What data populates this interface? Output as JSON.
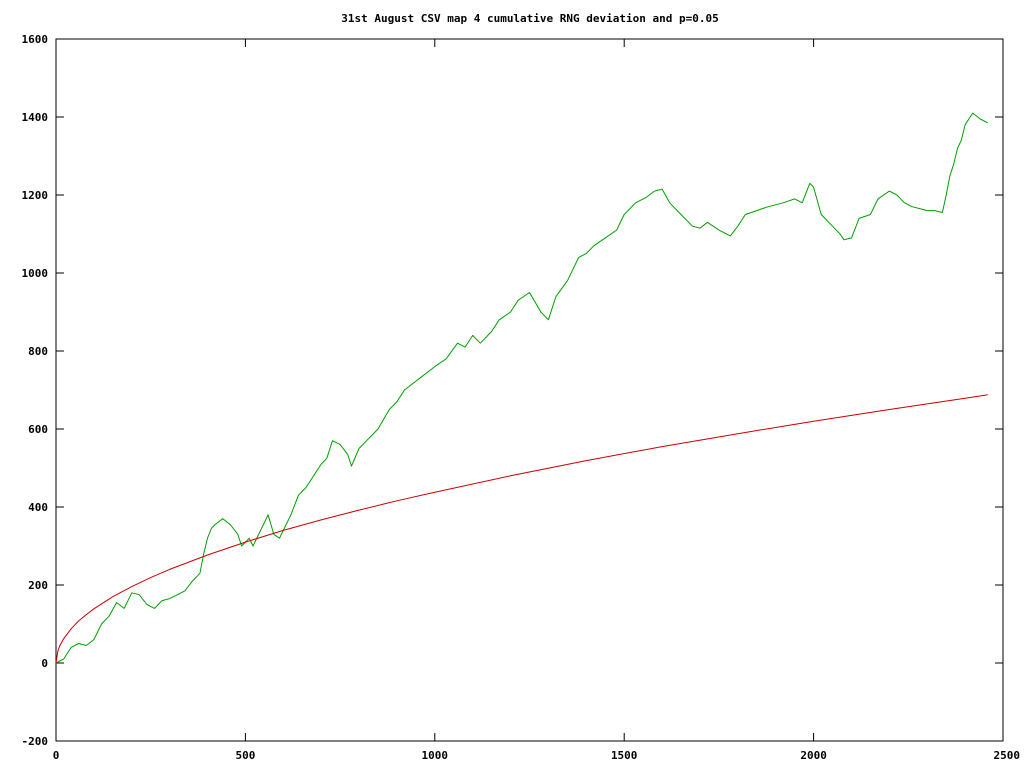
{
  "chart_data": {
    "type": "line",
    "title": "31st August CSV map 4 cumulative RNG deviation and p=0.05",
    "xlabel": "",
    "ylabel": "",
    "xlim": [
      0,
      2500
    ],
    "ylim": [
      -200,
      1600
    ],
    "xticks": [
      0,
      500,
      1000,
      1500,
      2000,
      2500
    ],
    "yticks": [
      -200,
      0,
      200,
      400,
      600,
      800,
      1000,
      1200,
      1400,
      1600
    ],
    "grid": false,
    "legend": "none",
    "series": [
      {
        "color": "#00a000",
        "x": [
          0,
          20,
          40,
          60,
          80,
          100,
          120,
          140,
          160,
          180,
          200,
          220,
          240,
          260,
          280,
          300,
          320,
          340,
          360,
          380,
          390,
          400,
          410,
          420,
          440,
          460,
          480,
          490,
          500,
          510,
          520,
          540,
          560,
          575,
          590,
          600,
          620,
          640,
          660,
          680,
          700,
          715,
          730,
          750,
          770,
          780,
          800,
          820,
          850,
          880,
          900,
          920,
          960,
          1000,
          1030,
          1060,
          1080,
          1100,
          1120,
          1150,
          1170,
          1200,
          1220,
          1250,
          1280,
          1300,
          1320,
          1350,
          1380,
          1400,
          1420,
          1450,
          1480,
          1500,
          1530,
          1560,
          1580,
          1600,
          1620,
          1650,
          1680,
          1700,
          1720,
          1750,
          1770,
          1780,
          1800,
          1820,
          1850,
          1880,
          1900,
          1920,
          1950,
          1970,
          1990,
          2000,
          2020,
          2050,
          2070,
          2080,
          2100,
          2120,
          2150,
          2170,
          2200,
          2220,
          2240,
          2260,
          2280,
          2300,
          2320,
          2340,
          2350,
          2360,
          2370,
          2380,
          2390,
          2400,
          2420,
          2440,
          2460
        ],
        "y": [
          0,
          10,
          40,
          50,
          45,
          60,
          100,
          120,
          155,
          140,
          180,
          175,
          150,
          140,
          160,
          165,
          175,
          185,
          210,
          230,
          280,
          320,
          345,
          355,
          370,
          355,
          330,
          300,
          310,
          320,
          300,
          340,
          380,
          330,
          320,
          340,
          380,
          430,
          450,
          480,
          510,
          525,
          570,
          560,
          535,
          505,
          550,
          570,
          600,
          650,
          670,
          700,
          730,
          760,
          780,
          820,
          810,
          840,
          820,
          850,
          880,
          900,
          930,
          950,
          900,
          880,
          940,
          980,
          1040,
          1050,
          1070,
          1090,
          1110,
          1150,
          1180,
          1195,
          1210,
          1215,
          1180,
          1150,
          1120,
          1115,
          1130,
          1110,
          1100,
          1095,
          1120,
          1150,
          1160,
          1170,
          1175,
          1180,
          1190,
          1180,
          1230,
          1220,
          1150,
          1120,
          1100,
          1085,
          1090,
          1140,
          1150,
          1190,
          1210,
          1200,
          1180,
          1170,
          1165,
          1160,
          1160,
          1155,
          1200,
          1250,
          1280,
          1320,
          1340,
          1380,
          1410,
          1395,
          1385
        ]
      },
      {
        "color": "#cc0000",
        "x": [
          0,
          5,
          10,
          20,
          40,
          60,
          80,
          100,
          150,
          200,
          250,
          300,
          400,
          500,
          600,
          700,
          800,
          900,
          1000,
          1200,
          1400,
          1600,
          1800,
          2000,
          2200,
          2400,
          2460
        ],
        "y": [
          0,
          31,
          44,
          62,
          88,
          108,
          124,
          139,
          170,
          196,
          219,
          240,
          277,
          310,
          340,
          367,
          392,
          416,
          438,
          480,
          519,
          555,
          588,
          620,
          650,
          679,
          688
        ]
      }
    ]
  }
}
